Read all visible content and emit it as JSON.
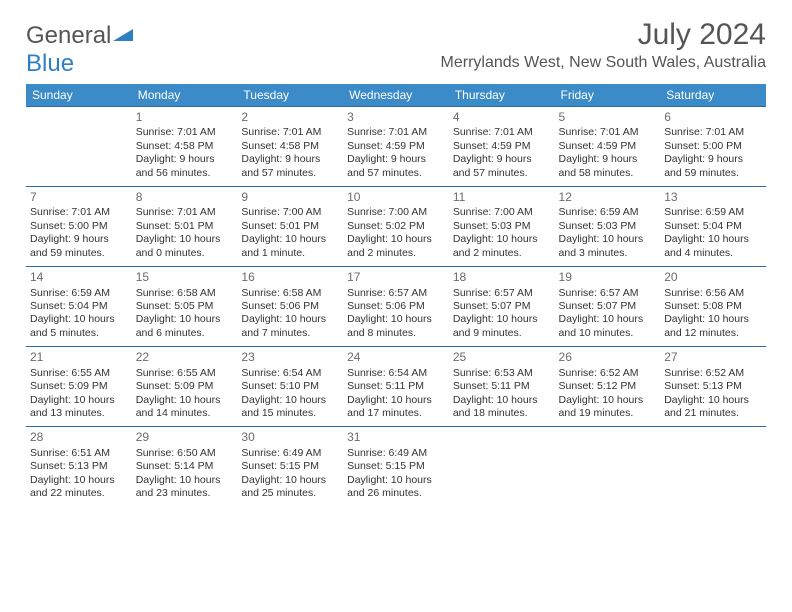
{
  "logo": {
    "word1": "General",
    "word2": "Blue",
    "tri_color": "#2f7fc3"
  },
  "title": "July 2024",
  "location": "Merrylands West, New South Wales, Australia",
  "colors": {
    "header_bg": "#3b8bc9",
    "header_text": "#ffffff",
    "row_border": "#2e6da4",
    "body_text": "#333333",
    "muted_text": "#6b6b6b"
  },
  "font": {
    "family": "Arial",
    "body_size_pt": 8,
    "header_size_pt": 9,
    "title_size_pt": 23
  },
  "day_headers": [
    "Sunday",
    "Monday",
    "Tuesday",
    "Wednesday",
    "Thursday",
    "Friday",
    "Saturday"
  ],
  "weeks": [
    [
      null,
      {
        "n": "1",
        "sr": "7:01 AM",
        "ss": "4:58 PM",
        "dl": "9 hours and 56 minutes."
      },
      {
        "n": "2",
        "sr": "7:01 AM",
        "ss": "4:58 PM",
        "dl": "9 hours and 57 minutes."
      },
      {
        "n": "3",
        "sr": "7:01 AM",
        "ss": "4:59 PM",
        "dl": "9 hours and 57 minutes."
      },
      {
        "n": "4",
        "sr": "7:01 AM",
        "ss": "4:59 PM",
        "dl": "9 hours and 57 minutes."
      },
      {
        "n": "5",
        "sr": "7:01 AM",
        "ss": "4:59 PM",
        "dl": "9 hours and 58 minutes."
      },
      {
        "n": "6",
        "sr": "7:01 AM",
        "ss": "5:00 PM",
        "dl": "9 hours and 59 minutes."
      }
    ],
    [
      {
        "n": "7",
        "sr": "7:01 AM",
        "ss": "5:00 PM",
        "dl": "9 hours and 59 minutes."
      },
      {
        "n": "8",
        "sr": "7:01 AM",
        "ss": "5:01 PM",
        "dl": "10 hours and 0 minutes."
      },
      {
        "n": "9",
        "sr": "7:00 AM",
        "ss": "5:01 PM",
        "dl": "10 hours and 1 minute."
      },
      {
        "n": "10",
        "sr": "7:00 AM",
        "ss": "5:02 PM",
        "dl": "10 hours and 2 minutes."
      },
      {
        "n": "11",
        "sr": "7:00 AM",
        "ss": "5:03 PM",
        "dl": "10 hours and 2 minutes."
      },
      {
        "n": "12",
        "sr": "6:59 AM",
        "ss": "5:03 PM",
        "dl": "10 hours and 3 minutes."
      },
      {
        "n": "13",
        "sr": "6:59 AM",
        "ss": "5:04 PM",
        "dl": "10 hours and 4 minutes."
      }
    ],
    [
      {
        "n": "14",
        "sr": "6:59 AM",
        "ss": "5:04 PM",
        "dl": "10 hours and 5 minutes."
      },
      {
        "n": "15",
        "sr": "6:58 AM",
        "ss": "5:05 PM",
        "dl": "10 hours and 6 minutes."
      },
      {
        "n": "16",
        "sr": "6:58 AM",
        "ss": "5:06 PM",
        "dl": "10 hours and 7 minutes."
      },
      {
        "n": "17",
        "sr": "6:57 AM",
        "ss": "5:06 PM",
        "dl": "10 hours and 8 minutes."
      },
      {
        "n": "18",
        "sr": "6:57 AM",
        "ss": "5:07 PM",
        "dl": "10 hours and 9 minutes."
      },
      {
        "n": "19",
        "sr": "6:57 AM",
        "ss": "5:07 PM",
        "dl": "10 hours and 10 minutes."
      },
      {
        "n": "20",
        "sr": "6:56 AM",
        "ss": "5:08 PM",
        "dl": "10 hours and 12 minutes."
      }
    ],
    [
      {
        "n": "21",
        "sr": "6:55 AM",
        "ss": "5:09 PM",
        "dl": "10 hours and 13 minutes."
      },
      {
        "n": "22",
        "sr": "6:55 AM",
        "ss": "5:09 PM",
        "dl": "10 hours and 14 minutes."
      },
      {
        "n": "23",
        "sr": "6:54 AM",
        "ss": "5:10 PM",
        "dl": "10 hours and 15 minutes."
      },
      {
        "n": "24",
        "sr": "6:54 AM",
        "ss": "5:11 PM",
        "dl": "10 hours and 17 minutes."
      },
      {
        "n": "25",
        "sr": "6:53 AM",
        "ss": "5:11 PM",
        "dl": "10 hours and 18 minutes."
      },
      {
        "n": "26",
        "sr": "6:52 AM",
        "ss": "5:12 PM",
        "dl": "10 hours and 19 minutes."
      },
      {
        "n": "27",
        "sr": "6:52 AM",
        "ss": "5:13 PM",
        "dl": "10 hours and 21 minutes."
      }
    ],
    [
      {
        "n": "28",
        "sr": "6:51 AM",
        "ss": "5:13 PM",
        "dl": "10 hours and 22 minutes."
      },
      {
        "n": "29",
        "sr": "6:50 AM",
        "ss": "5:14 PM",
        "dl": "10 hours and 23 minutes."
      },
      {
        "n": "30",
        "sr": "6:49 AM",
        "ss": "5:15 PM",
        "dl": "10 hours and 25 minutes."
      },
      {
        "n": "31",
        "sr": "6:49 AM",
        "ss": "5:15 PM",
        "dl": "10 hours and 26 minutes."
      },
      null,
      null,
      null
    ]
  ],
  "labels": {
    "sunrise": "Sunrise: ",
    "sunset": "Sunset: ",
    "daylight": "Daylight: "
  }
}
